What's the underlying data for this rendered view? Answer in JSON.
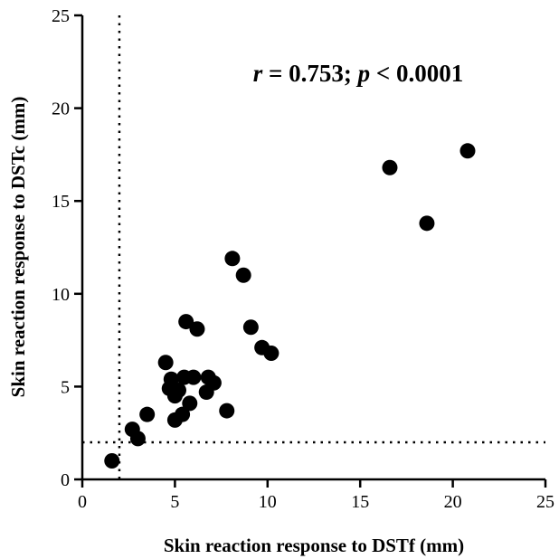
{
  "chart_data": {
    "type": "scatter",
    "xlabel": "Skin reaction response to DSTf (mm)",
    "ylabel": "Skin reaction response to DSTc (mm)",
    "xlim": [
      0,
      25
    ],
    "ylim": [
      0,
      25
    ],
    "xticks": [
      "0",
      "5",
      "10",
      "15",
      "20",
      "25"
    ],
    "yticks": [
      "0",
      "5",
      "10",
      "15",
      "20",
      "25"
    ],
    "grid": false,
    "reference_lines": {
      "x": 2,
      "y": 2,
      "style": "dotted"
    },
    "annotation": {
      "r_symbol": "r",
      "r_text": " = 0.753; ",
      "p_symbol": "p",
      "p_text": " < 0.0001"
    },
    "points": [
      {
        "x": 1.6,
        "y": 1.0
      },
      {
        "x": 2.7,
        "y": 2.7
      },
      {
        "x": 3.0,
        "y": 2.2
      },
      {
        "x": 3.5,
        "y": 3.5
      },
      {
        "x": 4.5,
        "y": 6.3
      },
      {
        "x": 4.7,
        "y": 4.9
      },
      {
        "x": 4.8,
        "y": 5.4
      },
      {
        "x": 5.0,
        "y": 4.5
      },
      {
        "x": 5.0,
        "y": 3.2
      },
      {
        "x": 5.2,
        "y": 4.8
      },
      {
        "x": 5.4,
        "y": 3.5
      },
      {
        "x": 5.5,
        "y": 5.5
      },
      {
        "x": 5.6,
        "y": 8.5
      },
      {
        "x": 5.8,
        "y": 4.1
      },
      {
        "x": 6.0,
        "y": 5.5
      },
      {
        "x": 6.2,
        "y": 8.1
      },
      {
        "x": 6.7,
        "y": 4.7
      },
      {
        "x": 6.8,
        "y": 5.5
      },
      {
        "x": 7.1,
        "y": 5.2
      },
      {
        "x": 7.8,
        "y": 3.7
      },
      {
        "x": 8.1,
        "y": 11.9
      },
      {
        "x": 8.7,
        "y": 11.0
      },
      {
        "x": 9.1,
        "y": 8.2
      },
      {
        "x": 9.7,
        "y": 7.1
      },
      {
        "x": 10.2,
        "y": 6.8
      },
      {
        "x": 16.6,
        "y": 16.8
      },
      {
        "x": 18.6,
        "y": 13.8
      },
      {
        "x": 20.8,
        "y": 17.7
      }
    ]
  }
}
